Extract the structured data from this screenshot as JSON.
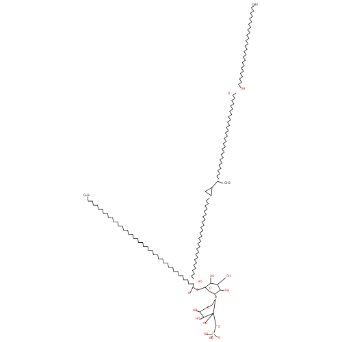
{
  "colors": {
    "bond": "#000000",
    "oxygen": "#ff0d0d",
    "phosphorus": "#ff8000",
    "carbon_label": "#000000",
    "background": "#ffffff"
  },
  "labels": {
    "top_methyl": "CH3",
    "left_methyl": "CH3",
    "chain_methyl": "CH3",
    "keto_o": "O",
    "hydroxy_oh_top": "OH",
    "beta_oh": "HO",
    "ester_o1": "O",
    "ester_carbonyl": "O",
    "sugar1_oh_a": "HO",
    "sugar1_oh_b": "OH",
    "sugar1_oh_c": "OH",
    "sugar1_ring_o": "O",
    "glycosidic_o": "O",
    "sugar2_ring_o": "O",
    "sugar2_oh_a": "HO",
    "sugar2_oh_b": "HO",
    "sugar2_oh_c": "OH",
    "phosphate_o": "O",
    "phosphate_p": "P",
    "phosphate_oh1": "OH",
    "phosphate_oh2": "OH",
    "phosphate_eq_o": "O"
  }
}
